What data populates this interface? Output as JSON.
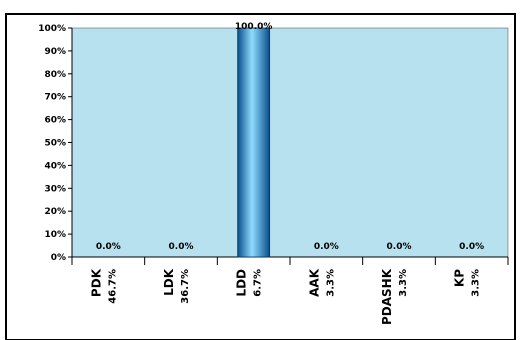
{
  "chart_data": {
    "type": "bar",
    "categories": [
      "PDK",
      "LDK",
      "LDD",
      "AAK",
      "PDASHK",
      "KP"
    ],
    "category_shares": [
      "46.7%",
      "36.7%",
      "6.7%",
      "3.3%",
      "3.3%",
      "3.3%"
    ],
    "values": [
      0.0,
      0.0,
      100.0,
      0.0,
      0.0,
      0.0
    ],
    "data_labels": [
      "0.0%",
      "0.0%",
      "100.0%",
      "0.0%",
      "0.0%",
      "0.0%"
    ],
    "y_ticks": [
      "0%",
      "10%",
      "20%",
      "30%",
      "40%",
      "50%",
      "60%",
      "70%",
      "80%",
      "90%",
      "100%"
    ],
    "ylim": [
      0,
      100
    ],
    "grid": false,
    "legend": "none",
    "colors": {
      "plot_background": "#b8e1f0",
      "bar_dark": "#0a4f8a",
      "bar_mid": "#1f9ad6",
      "bar_light": "#8fdcff",
      "frame": "#000000"
    }
  }
}
